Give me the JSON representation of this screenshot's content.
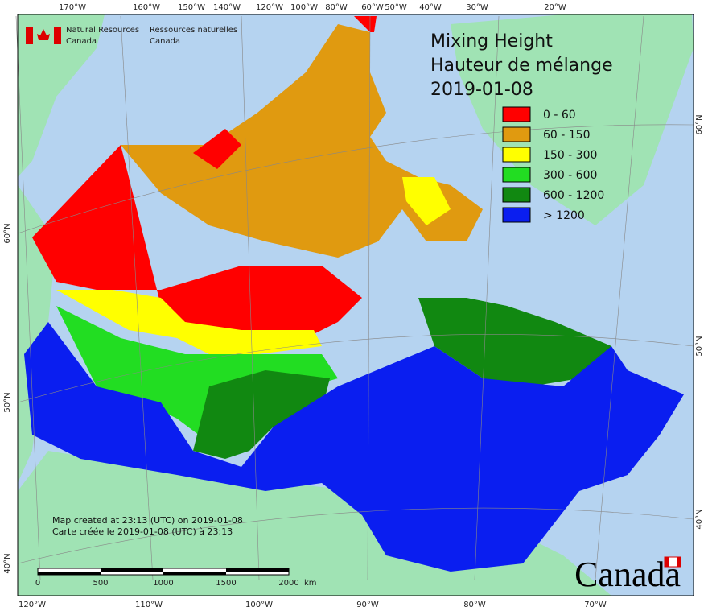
{
  "agency": {
    "english": [
      "Natural Resources",
      "Canada"
    ],
    "french": [
      "Ressources naturelles",
      "Canada"
    ]
  },
  "title": [
    "Mixing Height",
    "Hauteur de mélange",
    "2019-01-08"
  ],
  "legend": [
    {
      "label": "0 - 60",
      "color": "#ff0000"
    },
    {
      "label": "60 - 150",
      "color": "#e09a10"
    },
    {
      "label": "150 - 300",
      "color": "#ffff00"
    },
    {
      "label": "300 - 600",
      "color": "#22dd22"
    },
    {
      "label": "600 - 1200",
      "color": "#118811"
    },
    {
      "label": "> 1200",
      "color": "#0a1ef0"
    }
  ],
  "graticule": {
    "top": [
      "170°W",
      "160°W",
      "150°W",
      "140°W",
      "120°W",
      "100°W",
      "80°W",
      "60°W",
      "50°W",
      "40°W",
      "30°W",
      "20°W"
    ],
    "bottom": [
      "120°W",
      "110°W",
      "100°W",
      "90°W",
      "80°W",
      "70°W"
    ],
    "left": [
      "60°N",
      "50°N",
      "40°N"
    ],
    "right": [
      "60°N",
      "50°N",
      "40°N"
    ]
  },
  "footer": [
    "Map created at 23:13 (UTC) on 2019-01-08",
    "Carte créée le 2019-01-08 (UTC) à 23:13"
  ],
  "scale_bar": {
    "ticks": [
      "0",
      "500",
      "1000",
      "1500",
      "2000"
    ],
    "unit": "km"
  },
  "wordmark": "Canada"
}
